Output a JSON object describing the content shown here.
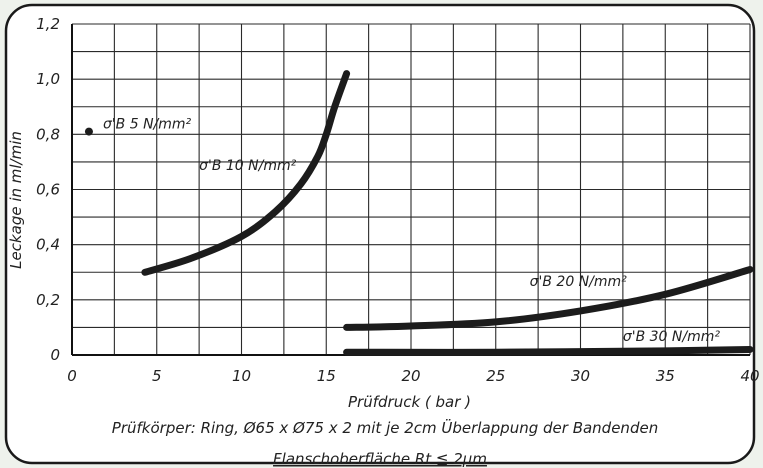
{
  "chart_data": {
    "type": "line",
    "xlabel": "Prüfdruck ( bar )",
    "ylabel": "Leckage in ml/min",
    "xlim": [
      0,
      40
    ],
    "ylim": [
      0,
      1.2
    ],
    "grid": true,
    "x_ticks": [
      "0",
      "5",
      "10",
      "15",
      "20",
      "25",
      "30",
      "35",
      "40"
    ],
    "y_ticks": [
      "0",
      "0,2",
      "0,4",
      "0,6",
      "0,8",
      "1,0",
      "1,2"
    ],
    "captions": [
      "Prüfkörper: Ring, Ø65 x Ø75 x 2 mit je 2cm Überlappung der Bandenden",
      "Flanschoberfläche Rt ≦ 2µm"
    ],
    "series": [
      {
        "name": "σ'B  5 N/mm²",
        "mark": "point",
        "points": [
          [
            1,
            0.81
          ]
        ]
      },
      {
        "name": "σ'B 10 N/mm²",
        "mark": "line",
        "points": [
          [
            4.3,
            0.3
          ],
          [
            7,
            0.35
          ],
          [
            10,
            0.43
          ],
          [
            12,
            0.52
          ],
          [
            13.5,
            0.62
          ],
          [
            14.5,
            0.72
          ],
          [
            15,
            0.8
          ],
          [
            15.5,
            0.9
          ],
          [
            16.2,
            1.02
          ]
        ]
      },
      {
        "name": "σ'B 20 N/mm²",
        "mark": "line",
        "points": [
          [
            16.2,
            0.1
          ],
          [
            20,
            0.105
          ],
          [
            25,
            0.12
          ],
          [
            30,
            0.16
          ],
          [
            35,
            0.22
          ],
          [
            40,
            0.31
          ]
        ]
      },
      {
        "name": "σ'B 30 N/mm²",
        "mark": "line",
        "points": [
          [
            16.2,
            0.01
          ],
          [
            25,
            0.01
          ],
          [
            35,
            0.015
          ],
          [
            40,
            0.02
          ]
        ]
      }
    ]
  }
}
